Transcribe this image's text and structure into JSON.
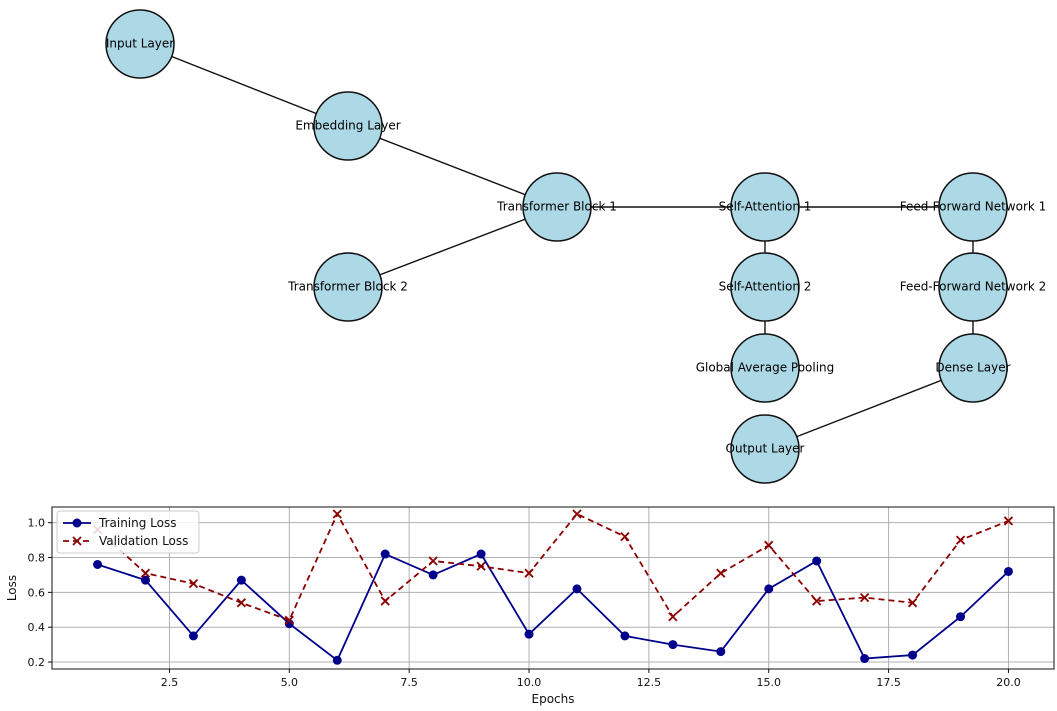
{
  "diagram": {
    "nodes": [
      {
        "id": "input",
        "label": "Input Layer"
      },
      {
        "id": "embed",
        "label": "Embedding Layer"
      },
      {
        "id": "tb1",
        "label": "Transformer Block 1"
      },
      {
        "id": "tb2",
        "label": "Transformer Block 2"
      },
      {
        "id": "sa1",
        "label": "Self-Attention 1"
      },
      {
        "id": "sa2",
        "label": "Self-Attention 2"
      },
      {
        "id": "gap",
        "label": "Global Average Pooling"
      },
      {
        "id": "ffn1",
        "label": "Feed-Forward Network 1"
      },
      {
        "id": "ffn2",
        "label": "Feed-Forward Network 2"
      },
      {
        "id": "dense",
        "label": "Dense Layer"
      },
      {
        "id": "out",
        "label": "Output Layer"
      }
    ],
    "edges": [
      [
        "input",
        "embed"
      ],
      [
        "embed",
        "tb1"
      ],
      [
        "tb1",
        "tb2"
      ],
      [
        "tb1",
        "sa1"
      ],
      [
        "sa1",
        "ffn1"
      ],
      [
        "sa1",
        "sa2"
      ],
      [
        "sa2",
        "gap"
      ],
      [
        "ffn1",
        "ffn2"
      ],
      [
        "ffn2",
        "dense"
      ],
      [
        "dense",
        "out"
      ]
    ]
  },
  "chart_data": {
    "type": "line",
    "xlabel": "Epochs",
    "ylabel": "Loss",
    "xlim": [
      0.05,
      20.95
    ],
    "ylim": [
      0.16,
      1.09
    ],
    "xticks": [
      2.5,
      5.0,
      7.5,
      10.0,
      12.5,
      15.0,
      17.5,
      20.0
    ],
    "xtick_labels": [
      "2.5",
      "5.0",
      "7.5",
      "10.0",
      "12.5",
      "15.0",
      "17.5",
      "20.0"
    ],
    "yticks": [
      0.2,
      0.4,
      0.6,
      0.8,
      1.0
    ],
    "ytick_labels": [
      "0.2",
      "0.4",
      "0.6",
      "0.8",
      "1.0"
    ],
    "grid": true,
    "legend_position": "upper-left",
    "x": [
      1,
      2,
      3,
      4,
      5,
      6,
      7,
      8,
      9,
      10,
      11,
      12,
      13,
      14,
      15,
      16,
      17,
      18,
      19,
      20
    ],
    "series": [
      {
        "name": "Training Loss",
        "color": "#00008b",
        "marker": "circle",
        "linestyle": "solid",
        "values": [
          0.76,
          0.67,
          0.35,
          0.67,
          0.42,
          0.21,
          0.82,
          0.7,
          0.82,
          0.36,
          0.62,
          0.35,
          0.3,
          0.26,
          0.62,
          0.78,
          0.22,
          0.24,
          0.46,
          0.72
        ]
      },
      {
        "name": "Validation Loss",
        "color": "#8b0000",
        "marker": "x",
        "linestyle": "dashed",
        "values": [
          0.96,
          0.71,
          0.65,
          0.54,
          0.44,
          1.05,
          0.55,
          0.78,
          0.75,
          0.71,
          1.05,
          0.92,
          0.46,
          0.71,
          0.87,
          0.55,
          0.57,
          0.54,
          0.9,
          1.01
        ]
      }
    ]
  }
}
